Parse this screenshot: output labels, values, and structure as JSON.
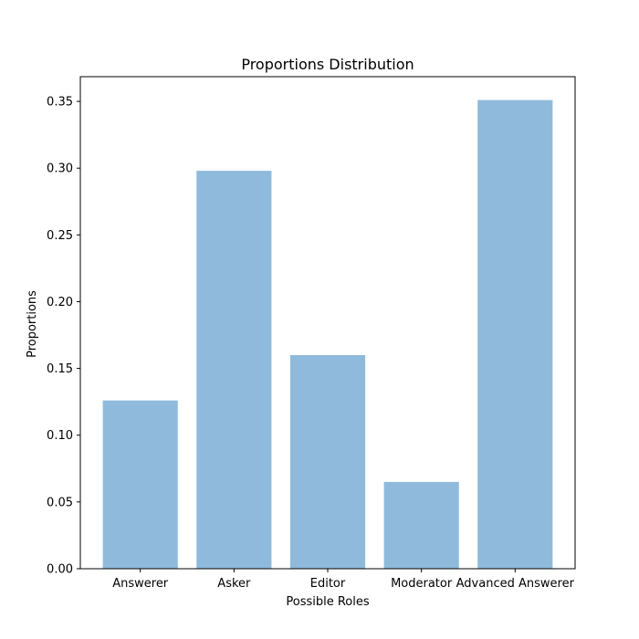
{
  "chart_data": {
    "type": "bar",
    "title": "Proportions Distribution",
    "xlabel": "Possible Roles",
    "ylabel": "Proportions",
    "categories": [
      "Answerer",
      "Asker",
      "Editor",
      "Moderator",
      "Advanced Answerer"
    ],
    "values": [
      0.126,
      0.298,
      0.16,
      0.065,
      0.351
    ],
    "ylim": [
      0,
      0.3685
    ],
    "yticks": [
      "0.00",
      "0.05",
      "0.10",
      "0.15",
      "0.20",
      "0.25",
      "0.30",
      "0.35"
    ],
    "bar_color": "#8fbadb",
    "grid": false,
    "legend": "none"
  }
}
